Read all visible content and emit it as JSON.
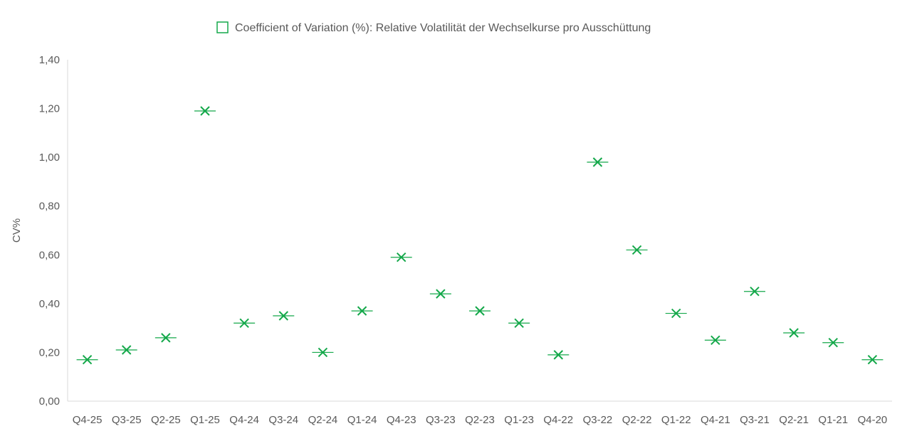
{
  "chart_data": {
    "type": "scatter",
    "categories": [
      "Q4-25",
      "Q3-25",
      "Q2-25",
      "Q1-25",
      "Q4-24",
      "Q3-24",
      "Q2-24",
      "Q1-24",
      "Q4-23",
      "Q3-23",
      "Q2-23",
      "Q1-23",
      "Q4-22",
      "Q3-22",
      "Q2-22",
      "Q1-22",
      "Q4-21",
      "Q3-21",
      "Q2-21",
      "Q1-21",
      "Q4-20"
    ],
    "series": [
      {
        "name": "Coefficient of Variation (%): Relative Volatilität der Wechselkurse pro Ausschüttung",
        "values": [
          0.17,
          0.21,
          0.26,
          1.19,
          0.32,
          0.35,
          0.2,
          0.37,
          0.59,
          0.44,
          0.37,
          0.32,
          0.19,
          0.98,
          0.62,
          0.36,
          0.25,
          0.45,
          0.28,
          0.24,
          0.17
        ]
      }
    ],
    "ylabel": "CV%",
    "xlabel": "",
    "ylim": [
      0,
      1.4
    ],
    "y_ticks": [
      "0,00",
      "0,20",
      "0,40",
      "0,60",
      "0,80",
      "1,00",
      "1,20",
      "1,40"
    ],
    "legend_position": "top-center",
    "grid": false
  },
  "colors": {
    "series": "#14a84a",
    "text": "#595959",
    "axis": "#d9d9d9"
  }
}
